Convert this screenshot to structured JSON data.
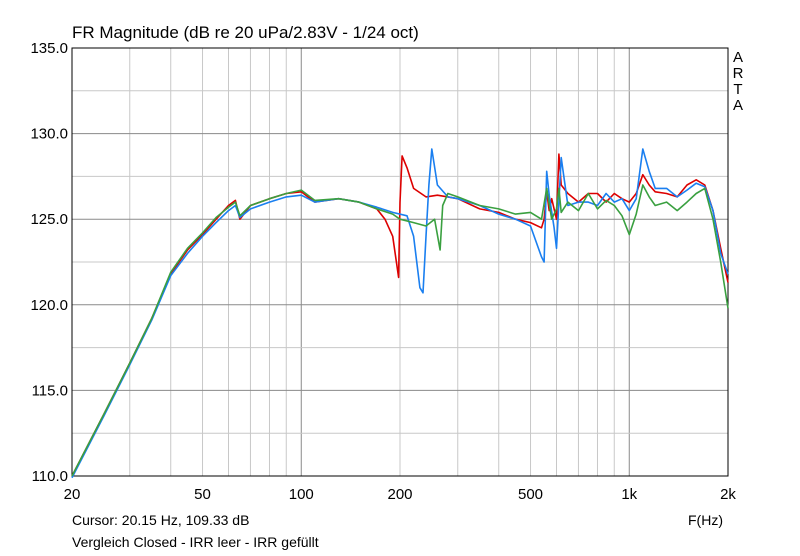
{
  "chart_data": {
    "type": "line",
    "title": "FR Magnitude (dB re 20 uPa/2.83V - 1/24 oct)",
    "xlabel": "F(Hz)",
    "ylabel": "",
    "xscale": "log",
    "xlim": [
      20,
      2000
    ],
    "ylim": [
      110,
      135
    ],
    "grid": true,
    "x_tick_values": [
      20,
      50,
      100,
      200,
      500,
      1000,
      2000
    ],
    "x_tick_labels": [
      "20",
      "50",
      "100",
      "200",
      "500",
      "1k",
      "2k"
    ],
    "y_tick_values": [
      110,
      115,
      120,
      125,
      130,
      135
    ],
    "y_tick_labels": [
      "110.0",
      "115.0",
      "120.0",
      "125.0",
      "130.0",
      "135.0"
    ],
    "watermark": "ARTA",
    "series": [
      {
        "color": "#dd0000",
        "x": [
          20,
          25,
          30,
          35,
          40,
          45,
          50,
          55,
          60,
          63,
          65,
          70,
          80,
          90,
          100,
          110,
          130,
          150,
          170,
          180,
          190,
          195,
          198,
          200,
          203,
          210,
          220,
          240,
          260,
          280,
          300,
          350,
          400,
          450,
          500,
          540,
          550,
          560,
          570,
          580,
          600,
          610,
          620,
          650,
          700,
          750,
          800,
          850,
          900,
          950,
          1000,
          1050,
          1100,
          1150,
          1200,
          1300,
          1400,
          1500,
          1600,
          1700,
          1800,
          1900,
          2000
        ],
        "y": [
          110.0,
          113.6,
          116.6,
          119.2,
          121.8,
          123.2,
          124.1,
          125.0,
          125.8,
          126.1,
          125.0,
          125.8,
          126.2,
          126.5,
          126.6,
          126.0,
          126.2,
          126.0,
          125.6,
          125.0,
          124.0,
          122.5,
          121.6,
          126.0,
          128.7,
          128.0,
          126.8,
          126.3,
          126.4,
          126.3,
          126.2,
          125.6,
          125.4,
          125.0,
          124.8,
          124.5,
          125.0,
          126.6,
          125.5,
          126.2,
          125.0,
          128.8,
          127.0,
          126.5,
          126.0,
          126.5,
          126.5,
          126.0,
          126.5,
          126.2,
          126.0,
          126.5,
          127.6,
          127.0,
          126.6,
          126.5,
          126.3,
          127.0,
          127.3,
          127.0,
          125.5,
          123.3,
          121.3
        ]
      },
      {
        "color": "#1a7ff0",
        "x": [
          20,
          25,
          30,
          35,
          40,
          45,
          50,
          55,
          60,
          63,
          65,
          70,
          80,
          90,
          100,
          110,
          130,
          150,
          170,
          190,
          210,
          220,
          230,
          235,
          240,
          245,
          250,
          260,
          280,
          300,
          350,
          400,
          450,
          500,
          540,
          550,
          560,
          570,
          590,
          600,
          620,
          650,
          700,
          750,
          800,
          850,
          900,
          950,
          1000,
          1050,
          1100,
          1150,
          1200,
          1300,
          1400,
          1500,
          1600,
          1700,
          1800,
          1900,
          2000
        ],
        "y": [
          109.9,
          113.5,
          116.5,
          119.1,
          121.7,
          123.0,
          124.0,
          124.8,
          125.5,
          125.8,
          125.1,
          125.6,
          126.0,
          126.3,
          126.4,
          126.0,
          126.2,
          126.0,
          125.7,
          125.4,
          125.2,
          124.0,
          121.0,
          120.7,
          124.0,
          127.0,
          129.1,
          127.0,
          126.3,
          126.2,
          125.8,
          125.3,
          125.0,
          124.6,
          122.8,
          122.5,
          127.8,
          126.4,
          124.5,
          123.3,
          128.6,
          125.8,
          126.0,
          126.0,
          125.8,
          126.5,
          126.0,
          126.2,
          125.5,
          126.2,
          129.1,
          127.8,
          126.8,
          126.8,
          126.3,
          126.7,
          127.1,
          126.9,
          125.5,
          123.0,
          121.8
        ]
      },
      {
        "color": "#3aa040",
        "x": [
          20,
          25,
          30,
          35,
          40,
          45,
          50,
          55,
          60,
          63,
          65,
          70,
          80,
          90,
          100,
          110,
          130,
          150,
          170,
          190,
          200,
          220,
          240,
          255,
          265,
          270,
          280,
          300,
          350,
          400,
          450,
          500,
          540,
          560,
          580,
          600,
          610,
          620,
          650,
          700,
          750,
          800,
          850,
          900,
          950,
          1000,
          1050,
          1100,
          1150,
          1200,
          1300,
          1400,
          1500,
          1600,
          1700,
          1800,
          1900,
          2000
        ],
        "y": [
          110.0,
          113.6,
          116.6,
          119.2,
          121.9,
          123.3,
          124.2,
          125.1,
          125.7,
          126.0,
          125.2,
          125.8,
          126.2,
          126.5,
          126.7,
          126.1,
          126.2,
          126.0,
          125.6,
          125.3,
          125.0,
          124.8,
          124.6,
          125.0,
          123.2,
          125.8,
          126.5,
          126.3,
          125.8,
          125.6,
          125.3,
          125.4,
          125.0,
          126.8,
          125.0,
          125.6,
          126.8,
          125.4,
          126.0,
          125.5,
          126.5,
          125.6,
          126.1,
          125.8,
          125.2,
          124.1,
          125.3,
          127.0,
          126.3,
          125.8,
          126.0,
          125.5,
          126.0,
          126.5,
          126.8,
          125.0,
          122.5,
          119.8
        ]
      }
    ]
  },
  "footer": {
    "cursor": "Cursor: 20.15 Hz, 109.33 dB",
    "xlabel": "F(Hz)",
    "caption": "Vergleich Closed - IRR leer - IRR gefüllt"
  }
}
